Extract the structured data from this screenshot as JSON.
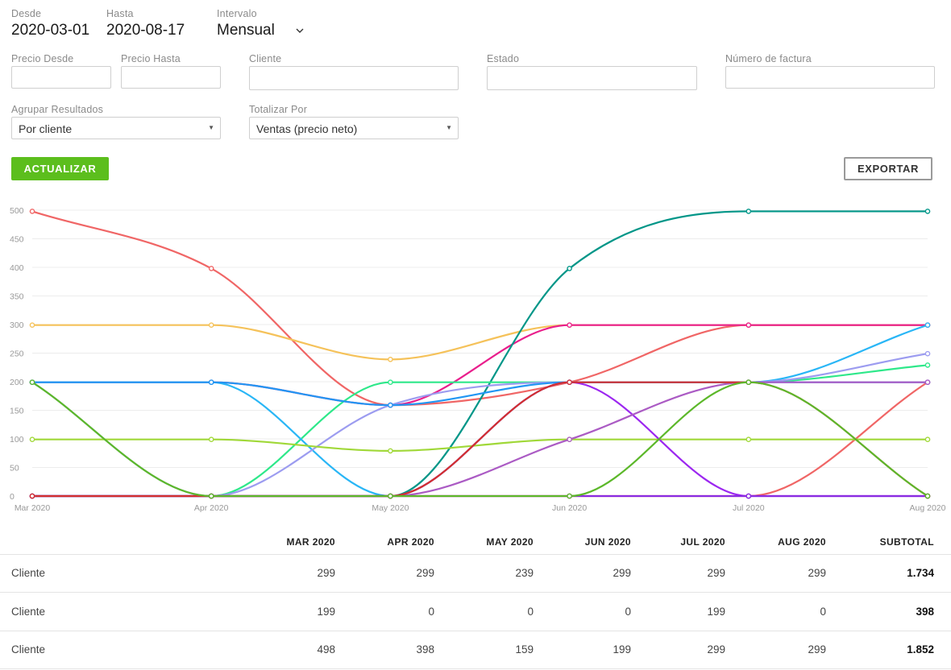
{
  "filters": {
    "desde_label": "Desde",
    "desde_value": "2020-03-01",
    "hasta_label": "Hasta",
    "hasta_value": "2020-08-17",
    "intervalo_label": "Intervalo",
    "intervalo_value": "Mensual",
    "precio_desde_label": "Precio Desde",
    "precio_hasta_label": "Precio Hasta",
    "cliente_label": "Cliente",
    "estado_label": "Estado",
    "numero_factura_label": "Número de factura",
    "agrupar_label": "Agrupar Resultados",
    "agrupar_value": "Por cliente",
    "totalizar_label": "Totalizar Por",
    "totalizar_value": "Ventas (precio neto)"
  },
  "buttons": {
    "actualizar": "ACTUALIZAR",
    "exportar": "EXPORTAR"
  },
  "chart_data": {
    "type": "line",
    "categories": [
      "Mar 2020",
      "Apr 2020",
      "May 2020",
      "Jun 2020",
      "Jul 2020",
      "Aug 2020"
    ],
    "ylim": [
      0,
      500
    ],
    "yticks": [
      0,
      50,
      100,
      150,
      200,
      250,
      300,
      350,
      400,
      450,
      500
    ],
    "grid": true,
    "series": [
      {
        "color": "#f06666",
        "values": [
          498,
          398,
          159,
          199,
          299,
          299
        ]
      },
      {
        "color": "#f5c25a",
        "values": [
          299,
          299,
          239,
          299,
          299,
          299
        ]
      },
      {
        "color": "#f06666",
        "values": [
          0,
          0,
          0,
          0,
          0,
          199
        ]
      },
      {
        "color": "#e91e8c",
        "values": [
          199,
          199,
          159,
          299,
          299,
          299
        ]
      },
      {
        "color": "#009688",
        "values": [
          0,
          0,
          0,
          398,
          498,
          498
        ]
      },
      {
        "color": "#2ee88a",
        "values": [
          0,
          0,
          199,
          199,
          199,
          229
        ]
      },
      {
        "color": "#29b6f6",
        "values": [
          199,
          199,
          0,
          199,
          199,
          299
        ]
      },
      {
        "color": "#9c9cf0",
        "values": [
          199,
          0,
          159,
          199,
          199,
          249
        ]
      },
      {
        "color": "#2196f3",
        "values": [
          199,
          199,
          159,
          199,
          199,
          199
        ]
      },
      {
        "color": "#a0d838",
        "values": [
          99,
          99,
          79,
          99,
          99,
          99
        ]
      },
      {
        "color": "#9c27f0",
        "values": [
          0,
          0,
          0,
          199,
          0,
          0
        ]
      },
      {
        "color": "#ab5bc4",
        "values": [
          0,
          0,
          0,
          99,
          199,
          199
        ]
      },
      {
        "color": "#8a2be2",
        "values": [
          0,
          0,
          0,
          0,
          0,
          0
        ]
      },
      {
        "color": "#d32f2f",
        "values": [
          0,
          0,
          0,
          199,
          199,
          0
        ]
      },
      {
        "color": "#5cb82a",
        "values": [
          199,
          0,
          0,
          0,
          199,
          0
        ]
      }
    ]
  },
  "table": {
    "headers": [
      "MAR 2020",
      "APR 2020",
      "MAY 2020",
      "JUN 2020",
      "JUL 2020",
      "AUG 2020",
      "SUBTOTAL"
    ],
    "rows": [
      {
        "name": "Cliente",
        "values": [
          "299",
          "299",
          "239",
          "299",
          "299",
          "299"
        ],
        "subtotal": "1.734"
      },
      {
        "name": "Cliente",
        "values": [
          "199",
          "0",
          "0",
          "0",
          "199",
          "0"
        ],
        "subtotal": "398"
      },
      {
        "name": "Cliente",
        "values": [
          "498",
          "398",
          "159",
          "199",
          "299",
          "299"
        ],
        "subtotal": "1.852"
      }
    ]
  }
}
